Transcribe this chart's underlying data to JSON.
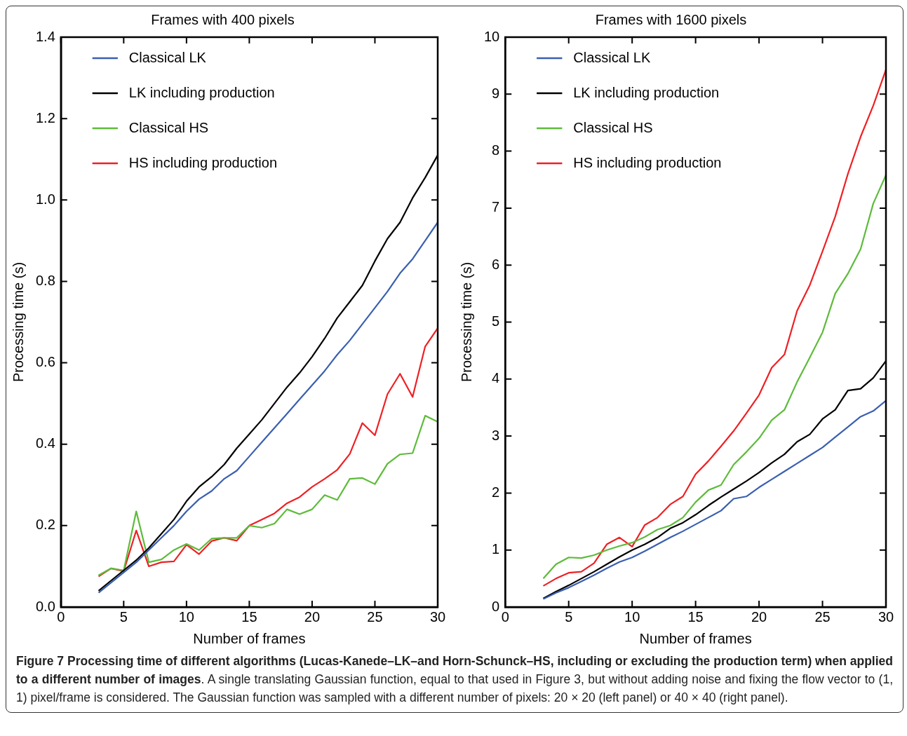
{
  "chart_data": [
    {
      "type": "line",
      "title": "Frames with 400 pixels",
      "xlabel": "Number of frames",
      "ylabel": "Processing time (s)",
      "x": [
        3,
        4,
        5,
        6,
        7,
        8,
        9,
        10,
        11,
        12,
        13,
        14,
        15,
        16,
        17,
        18,
        19,
        20,
        21,
        22,
        23,
        24,
        25,
        26,
        27,
        28,
        29,
        30
      ],
      "xlim": [
        0,
        30
      ],
      "xticks": [
        0,
        5,
        10,
        15,
        20,
        25,
        30
      ],
      "ylim": [
        0,
        1.4
      ],
      "yticks": [
        {
          "value": 0,
          "label": "0.0"
        },
        0.2,
        0.4,
        0.6,
        0.8,
        {
          "value": 1,
          "label": "1.0"
        },
        1.2,
        1.4
      ],
      "legend": "top left",
      "marker": "none",
      "line_style": "solid",
      "series": [
        {
          "name": "Classical LK",
          "color": "#3a5fb0",
          "values": [
            0.035,
            0.06,
            0.085,
            0.11,
            0.14,
            0.17,
            0.2,
            0.235,
            0.265,
            0.285,
            0.315,
            0.335,
            0.37,
            0.405,
            0.44,
            0.475,
            0.51,
            0.545,
            0.58,
            0.62,
            0.655,
            0.695,
            0.735,
            0.775,
            0.82,
            0.855,
            0.9,
            0.945
          ]
        },
        {
          "name": "LK including production",
          "color": "#000000",
          "values": [
            0.04,
            0.065,
            0.09,
            0.115,
            0.145,
            0.18,
            0.215,
            0.26,
            0.295,
            0.32,
            0.35,
            0.39,
            0.425,
            0.46,
            0.5,
            0.54,
            0.575,
            0.615,
            0.66,
            0.71,
            0.75,
            0.79,
            0.85,
            0.905,
            0.945,
            1.005,
            1.055,
            1.11
          ]
        },
        {
          "name": "Classical HS",
          "color": "#5dbb3a",
          "values": [
            0.078,
            0.095,
            0.09,
            0.235,
            0.11,
            0.117,
            0.14,
            0.155,
            0.14,
            0.168,
            0.17,
            0.17,
            0.2,
            0.195,
            0.205,
            0.24,
            0.228,
            0.24,
            0.275,
            0.263,
            0.315,
            0.317,
            0.302,
            0.352,
            0.375,
            0.378,
            0.47,
            0.455
          ]
        },
        {
          "name": "HS including production",
          "color": "#ee2024",
          "values": [
            0.075,
            0.095,
            0.088,
            0.188,
            0.1,
            0.11,
            0.112,
            0.153,
            0.13,
            0.162,
            0.17,
            0.163,
            0.2,
            0.215,
            0.23,
            0.255,
            0.27,
            0.295,
            0.315,
            0.337,
            0.376,
            0.452,
            0.422,
            0.523,
            0.573,
            0.516,
            0.64,
            0.685
          ]
        }
      ]
    },
    {
      "type": "line",
      "title": "Frames with 1600 pixels",
      "xlabel": "Number of frames",
      "ylabel": "Processing time (s)",
      "x": [
        3,
        4,
        5,
        6,
        7,
        8,
        9,
        10,
        11,
        12,
        13,
        14,
        15,
        16,
        17,
        18,
        19,
        20,
        21,
        22,
        23,
        24,
        25,
        26,
        27,
        28,
        29,
        30
      ],
      "xlim": [
        0,
        30
      ],
      "xticks": [
        0,
        5,
        10,
        15,
        20,
        25,
        30
      ],
      "ylim": [
        0,
        10
      ],
      "yticks": [
        0,
        1,
        2,
        3,
        4,
        5,
        6,
        7,
        8,
        9,
        10
      ],
      "legend": "top left",
      "marker": "none",
      "line_style": "solid",
      "series": [
        {
          "name": "Classical LK",
          "color": "#3a5fb0",
          "values": [
            0.14,
            0.25,
            0.34,
            0.45,
            0.56,
            0.68,
            0.79,
            0.87,
            0.98,
            1.1,
            1.22,
            1.33,
            1.45,
            1.57,
            1.69,
            1.9,
            1.94,
            2.1,
            2.24,
            2.38,
            2.52,
            2.66,
            2.8,
            2.98,
            3.16,
            3.34,
            3.44,
            3.62
          ]
        },
        {
          "name": "LK including production",
          "color": "#000000",
          "values": [
            0.15,
            0.27,
            0.38,
            0.5,
            0.62,
            0.75,
            0.88,
            1.0,
            1.1,
            1.22,
            1.38,
            1.48,
            1.62,
            1.78,
            1.93,
            2.07,
            2.21,
            2.36,
            2.53,
            2.68,
            2.9,
            3.03,
            3.3,
            3.46,
            3.8,
            3.83,
            4.02,
            4.32
          ]
        },
        {
          "name": "Classical HS",
          "color": "#5dbb3a",
          "values": [
            0.5,
            0.75,
            0.87,
            0.86,
            0.91,
            1.0,
            1.07,
            1.13,
            1.23,
            1.36,
            1.43,
            1.57,
            1.84,
            2.05,
            2.14,
            2.5,
            2.72,
            2.96,
            3.28,
            3.46,
            3.95,
            4.38,
            4.82,
            5.5,
            5.85,
            6.28,
            7.08,
            7.58
          ]
        },
        {
          "name": "HS including production",
          "color": "#ee2024",
          "values": [
            0.37,
            0.5,
            0.6,
            0.62,
            0.77,
            1.1,
            1.22,
            1.06,
            1.44,
            1.57,
            1.8,
            1.94,
            2.33,
            2.56,
            2.82,
            3.09,
            3.4,
            3.72,
            4.2,
            4.43,
            5.2,
            5.65,
            6.24,
            6.85,
            7.6,
            8.25,
            8.8,
            9.43
          ]
        }
      ],
      "annotations": [
        "Figure 7 Processing time of different algorithms (Lucas-Kanede–LK–and Horn-Schunck–HS, including or excluding the production term) when applied to a different number of images",
        ". A single translating Gaussian function, equal to that used in Figure 3, but without adding noise and fixing the flow vector to (1, 1) pixel/frame is considered. The Gaussian function was sampled with a different number of pixels: 20 × 20 (left panel) or 40 × 40 (right panel)."
      ]
    }
  ]
}
